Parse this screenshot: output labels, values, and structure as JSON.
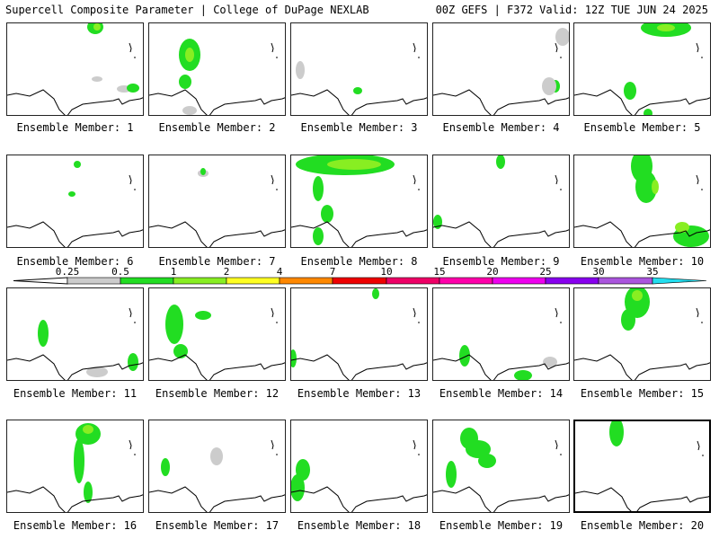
{
  "header": {
    "title": "Supercell Composite Parameter | College of DuPage NEXLAB",
    "run_info": "00Z GEFS | F372 Valid: 12Z TUE JUN 24 2025"
  },
  "panels": [
    {
      "label": "Ensemble Member: 1"
    },
    {
      "label": "Ensemble Member: 2"
    },
    {
      "label": "Ensemble Member: 3"
    },
    {
      "label": "Ensemble Member: 4"
    },
    {
      "label": "Ensemble Member: 5"
    },
    {
      "label": "Ensemble Member: 6"
    },
    {
      "label": "Ensemble Member: 7"
    },
    {
      "label": "Ensemble Member: 8"
    },
    {
      "label": "Ensemble Member: 9"
    },
    {
      "label": "Ensemble Member: 10"
    },
    {
      "label": "Ensemble Member: 11"
    },
    {
      "label": "Ensemble Member: 12"
    },
    {
      "label": "Ensemble Member: 13"
    },
    {
      "label": "Ensemble Member: 14"
    },
    {
      "label": "Ensemble Member: 15"
    },
    {
      "label": "Ensemble Member: 16"
    },
    {
      "label": "Ensemble Member: 17"
    },
    {
      "label": "Ensemble Member: 18"
    },
    {
      "label": "Ensemble Member: 19"
    },
    {
      "label": "Ensemble Member: 20"
    }
  ],
  "colorbar": {
    "levels": [
      "0.25",
      "0.5",
      "1",
      "2",
      "4",
      "7",
      "10",
      "15",
      "20",
      "25",
      "30",
      "35"
    ],
    "colors": [
      "#cccccc",
      "#22dd22",
      "#88ee22",
      "#ffff22",
      "#ff8800",
      "#ee0000",
      "#ee0066",
      "#ff00aa",
      "#ee00ee",
      "#8800ee",
      "#aa55dd",
      "#22ddee"
    ]
  }
}
